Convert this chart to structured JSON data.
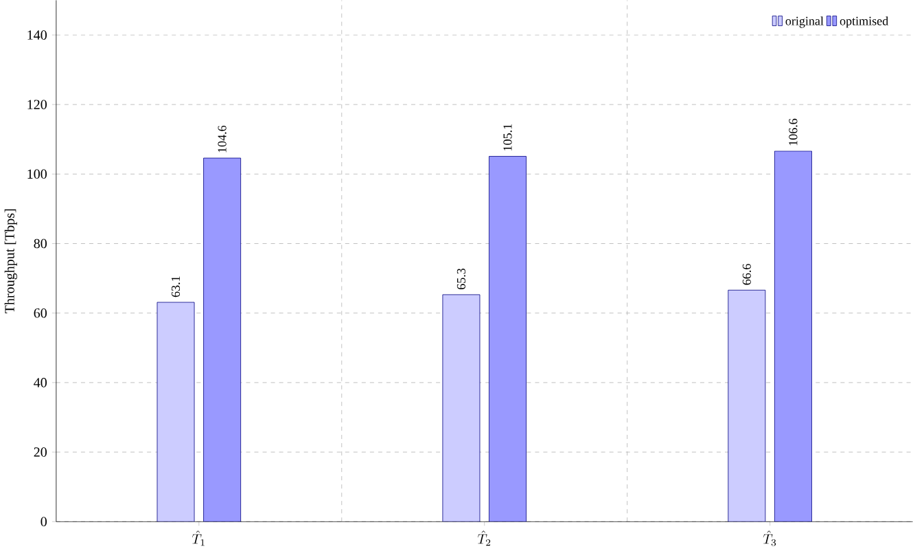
{
  "chart_data": {
    "type": "bar",
    "ylabel": "Throughput [Tbps]",
    "categories": [
      "\\hat{T}_1",
      "\\hat{T}_2",
      "\\hat{T}_3"
    ],
    "series": [
      {
        "name": "original",
        "color": "#ccccff",
        "values": [
          63.1,
          65.3,
          66.6
        ]
      },
      {
        "name": "optimised",
        "color": "#9999ff",
        "values": [
          104.6,
          105.1,
          106.6
        ]
      }
    ],
    "ylim": [
      0,
      150
    ],
    "yticks": [
      0,
      20,
      40,
      60,
      80,
      100,
      120,
      140
    ],
    "grid": true,
    "legend": "top right",
    "data_labels": true
  }
}
